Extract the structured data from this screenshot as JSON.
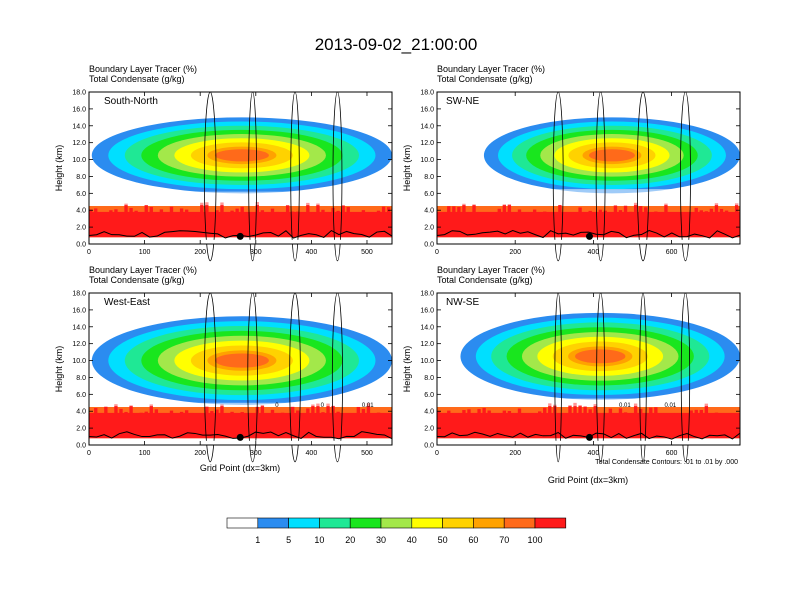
{
  "figure_title": "2013-09-02_21:00:00",
  "chart_data": [
    {
      "type": "heatmap",
      "panel": "South-North",
      "title_lines": [
        "Boundary Layer Tracer   (%)",
        "Total Condensate   (g/kg)"
      ],
      "xlabel": "",
      "ylabel": "Height (km)",
      "xlim": [
        0,
        545
      ],
      "ylim": [
        0,
        18
      ],
      "xticks": [
        "0",
        "100",
        "200",
        "300",
        "400",
        "500"
      ],
      "xtick_values": [
        0,
        100,
        200,
        300,
        400,
        500
      ],
      "yticks": [
        "0.0",
        "2.0",
        "4.0",
        "6.0",
        "8.0",
        "10.0",
        "12.0",
        "14.0",
        "16.0",
        "18.0"
      ],
      "ytick_values": [
        0,
        2,
        4,
        6,
        8,
        10,
        12,
        14,
        16,
        18
      ],
      "marker_x": 272,
      "anvil": {
        "x0": 5,
        "x1": 545,
        "base": 6.2,
        "top": 15.2,
        "core": 10.5
      }
    },
    {
      "type": "heatmap",
      "panel": "SW-NE",
      "title_lines": [
        "Boundary Layer Tracer   (%)",
        "Total Condensate   (g/kg)"
      ],
      "xlabel": "",
      "ylabel": "Height (km)",
      "xlim": [
        0,
        775
      ],
      "ylim": [
        0,
        18
      ],
      "xticks": [
        "0",
        "200",
        "400",
        "600"
      ],
      "xtick_values": [
        0,
        200,
        400,
        600
      ],
      "yticks": [
        "0.0",
        "2.0",
        "4.0",
        "6.0",
        "8.0",
        "10.0",
        "12.0",
        "14.0",
        "16.0",
        "18.0"
      ],
      "ytick_values": [
        0,
        2,
        4,
        6,
        8,
        10,
        12,
        14,
        16,
        18
      ],
      "marker_x": 390,
      "anvil": {
        "x0": 120,
        "x1": 775,
        "base": 6.5,
        "top": 15.5,
        "core": 10.5
      }
    },
    {
      "type": "heatmap",
      "panel": "West-East",
      "title_lines": [
        "Boundary Layer Tracer   (%)",
        "Total Condensate   (g/kg)"
      ],
      "xlabel": "Grid Point (dx=3km)",
      "ylabel": "Height (km)",
      "xlim": [
        0,
        545
      ],
      "ylim": [
        0,
        18
      ],
      "xticks": [
        "0",
        "100",
        "200",
        "300",
        "400",
        "500"
      ],
      "xtick_values": [
        0,
        100,
        200,
        300,
        400,
        500
      ],
      "yticks": [
        "0.0",
        "2.0",
        "4.0",
        "6.0",
        "8.0",
        "10.0",
        "12.0",
        "14.0",
        "16.0",
        "18.0"
      ],
      "ytick_values": [
        0,
        2,
        4,
        6,
        8,
        10,
        12,
        14,
        16,
        18
      ],
      "marker_x": 272,
      "anvil": {
        "x0": 5,
        "x1": 545,
        "base": 5.0,
        "top": 15.5,
        "core": 10.0
      },
      "contour_labels": [
        "0",
        "0",
        "0.01"
      ]
    },
    {
      "type": "heatmap",
      "panel": "NW-SE",
      "title_lines": [
        "Boundary Layer Tracer   (%)",
        "Total Condensate   (g/kg)"
      ],
      "xlabel": "Grid Point (dx=3km)",
      "ylabel": "Height (km)",
      "xlim": [
        0,
        775
      ],
      "ylim": [
        0,
        18
      ],
      "xticks": [
        "0",
        "200",
        "400",
        "600"
      ],
      "xtick_values": [
        0,
        200,
        400,
        600
      ],
      "yticks": [
        "0.0",
        "2.0",
        "4.0",
        "6.0",
        "8.0",
        "10.0",
        "12.0",
        "14.0",
        "16.0",
        "18.0"
      ],
      "ytick_values": [
        0,
        2,
        4,
        6,
        8,
        10,
        12,
        14,
        16,
        18
      ],
      "marker_x": 390,
      "anvil": {
        "x0": 60,
        "x1": 775,
        "base": 5.5,
        "top": 15.8,
        "core": 10.5
      },
      "contour_labels": [
        "0.01",
        "0.01"
      ]
    }
  ],
  "contour_note": "Total Condensate Contours: .01 to .01 by .000",
  "colorbar": {
    "colors": [
      "#ffffff",
      "#2b8cf0",
      "#00dfff",
      "#1fe895",
      "#19e61e",
      "#a3e84a",
      "#ffff00",
      "#ffd200",
      "#ffa200",
      "#ff6a1a",
      "#ff1a1a"
    ],
    "labels": [
      "1",
      "5",
      "10",
      "20",
      "30",
      "40",
      "50",
      "60",
      "70",
      "100"
    ]
  }
}
